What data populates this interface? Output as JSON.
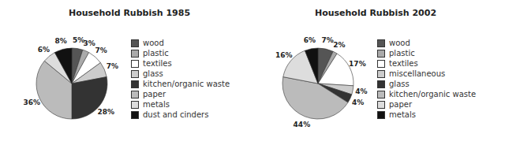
{
  "chart_data": [
    {
      "type": "pie",
      "title": "Household Rubbish 1985",
      "categories": [
        "wood",
        "plastic",
        "textiles",
        "glass",
        "kitchen/organic waste",
        "paper",
        "metals",
        "dust and cinders"
      ],
      "values": [
        5,
        3,
        7,
        7,
        28,
        36,
        6,
        8
      ],
      "value_labels": [
        "5%",
        "3%",
        "7%",
        "7%",
        "28%",
        "36%",
        "6%",
        "8%"
      ],
      "colors": [
        "#555555",
        "#aaaaaa",
        "#ffffff",
        "#cccccc",
        "#333333",
        "#bbbbbb",
        "#dddddd",
        "#111111"
      ],
      "data_labels": true,
      "legend": "right"
    },
    {
      "type": "pie",
      "title": "Household Rubbish 2002",
      "categories": [
        "wood",
        "plastic",
        "textiles",
        "miscellaneous",
        "glass",
        "kitchen/organic waste",
        "paper",
        "metals"
      ],
      "values": [
        7,
        2,
        17,
        4,
        4,
        44,
        16,
        6
      ],
      "value_labels": [
        "7%",
        "2%",
        "17%",
        "4%",
        "4%",
        "44%",
        "16%",
        "6%"
      ],
      "colors": [
        "#555555",
        "#aaaaaa",
        "#ffffff",
        "#cccccc",
        "#333333",
        "#bbbbbb",
        "#dddddd",
        "#111111"
      ],
      "data_labels": true,
      "legend": "right"
    }
  ]
}
